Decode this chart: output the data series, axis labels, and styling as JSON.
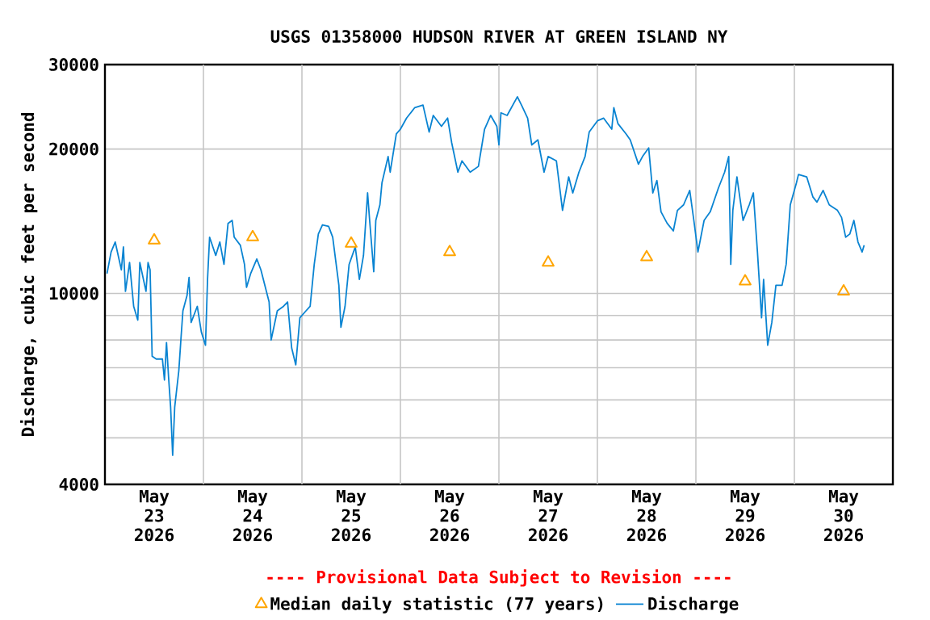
{
  "chart_data": {
    "type": "line",
    "title": "USGS 01358000 HUDSON RIVER AT GREEN ISLAND NY",
    "ylabel": "Discharge, cubic feet per second",
    "annotations": [
      "---- Provisional Data Subject to Revision ----"
    ],
    "log": true,
    "grid": true,
    "legend": "bottom",
    "ylim": [
      4000,
      30000
    ],
    "yticks": [
      4000,
      {
        "value": 5000,
        "label": null
      },
      {
        "value": 6000,
        "label": null
      },
      {
        "value": 7000,
        "label": null
      },
      {
        "value": 8000,
        "label": null
      },
      {
        "value": 9000,
        "label": null
      },
      10000,
      20000,
      30000
    ],
    "xlim": [
      "2026-05-23T00:00",
      "2026-05-31T00:00"
    ],
    "xticks": [
      {
        "value": "2026-05-23T12:00",
        "label": "May 23 2026"
      },
      {
        "value": "2026-05-24T12:00",
        "label": "May 24 2026"
      },
      {
        "value": "2026-05-25T12:00",
        "label": "May 25 2026"
      },
      {
        "value": "2026-05-26T12:00",
        "label": "May 26 2026"
      },
      {
        "value": "2026-05-27T12:00",
        "label": "May 27 2026"
      },
      {
        "value": "2026-05-28T12:00",
        "label": "May 28 2026"
      },
      {
        "value": "2026-05-29T12:00",
        "label": "May 29 2026"
      },
      {
        "value": "2026-05-30T12:00",
        "label": "May 30 2026"
      },
      {
        "value": "2026-05-24T00:00",
        "label": null
      },
      {
        "value": "2026-05-25T00:00",
        "label": null
      },
      {
        "value": "2026-05-26T00:00",
        "label": null
      },
      {
        "value": "2026-05-27T00:00",
        "label": null
      },
      {
        "value": "2026-05-28T00:00",
        "label": null
      },
      {
        "value": "2026-05-29T00:00",
        "label": null
      },
      {
        "value": "2026-05-30T00:00",
        "label": null
      }
    ],
    "series": [
      {
        "name": "Median daily statistic (77 years)",
        "type": "scatter",
        "marker": "triangle",
        "color": "#ffa500",
        "x": [
          "2026-05-23T12:00",
          "2026-05-24T12:00",
          "2026-05-25T12:00",
          "2026-05-26T12:00",
          "2026-05-27T12:00",
          "2026-05-28T12:00",
          "2026-05-29T12:00",
          "2026-05-30T12:00"
        ],
        "values": [
          12900,
          13100,
          12700,
          12200,
          11600,
          11900,
          10600,
          10100
        ]
      },
      {
        "name": "Discharge",
        "line_style": "solid",
        "color": "#0a84d2",
        "x": [
          "2026-05-23T00:30",
          "2026-05-23T01:30",
          "2026-05-23T02:30",
          "2026-05-23T04:00",
          "2026-05-23T04:30",
          "2026-05-23T05:00",
          "2026-05-23T06:00",
          "2026-05-23T07:00",
          "2026-05-23T08:00",
          "2026-05-23T08:30",
          "2026-05-23T10:00",
          "2026-05-23T10:30",
          "2026-05-23T11:00",
          "2026-05-23T11:30",
          "2026-05-23T12:30",
          "2026-05-23T14:00",
          "2026-05-23T14:30",
          "2026-05-23T15:00",
          "2026-05-23T15:30",
          "2026-05-23T16:00",
          "2026-05-23T16:30",
          "2026-05-23T17:00",
          "2026-05-23T18:00",
          "2026-05-23T18:30",
          "2026-05-23T19:00",
          "2026-05-23T20:00",
          "2026-05-23T20:30",
          "2026-05-23T21:00",
          "2026-05-23T22:30",
          "2026-05-23T23:30",
          "2026-05-24T00:30",
          "2026-05-24T01:00",
          "2026-05-24T01:30",
          "2026-05-24T03:00",
          "2026-05-24T04:00",
          "2026-05-24T05:00",
          "2026-05-24T06:00",
          "2026-05-24T07:00",
          "2026-05-24T07:30",
          "2026-05-24T09:00",
          "2026-05-24T10:00",
          "2026-05-24T10:30",
          "2026-05-24T11:30",
          "2026-05-24T13:00",
          "2026-05-24T14:00",
          "2026-05-24T16:00",
          "2026-05-24T16:30",
          "2026-05-24T18:00",
          "2026-05-24T19:30",
          "2026-05-24T20:30",
          "2026-05-24T21:30",
          "2026-05-24T22:30",
          "2026-05-24T23:30",
          "2026-05-25T01:00",
          "2026-05-25T02:00",
          "2026-05-25T03:00",
          "2026-05-25T04:00",
          "2026-05-25T05:00",
          "2026-05-25T06:30",
          "2026-05-25T07:30",
          "2026-05-25T09:00",
          "2026-05-25T09:30",
          "2026-05-25T10:30",
          "2026-05-25T11:30",
          "2026-05-25T13:00",
          "2026-05-25T14:00",
          "2026-05-25T15:00",
          "2026-05-25T16:00",
          "2026-05-25T16:30",
          "2026-05-25T17:30",
          "2026-05-25T18:00",
          "2026-05-25T19:00",
          "2026-05-25T19:30",
          "2026-05-25T21:00",
          "2026-05-25T21:30",
          "2026-05-25T23:00",
          "2026-05-26T00:00",
          "2026-05-26T01:30",
          "2026-05-26T03:30",
          "2026-05-26T05:30",
          "2026-05-26T07:00",
          "2026-05-26T08:00",
          "2026-05-26T10:00",
          "2026-05-26T11:30",
          "2026-05-26T12:30",
          "2026-05-26T14:00",
          "2026-05-26T15:00",
          "2026-05-26T17:00",
          "2026-05-26T19:00",
          "2026-05-26T20:30",
          "2026-05-26T22:00",
          "2026-05-26T23:30",
          "2026-05-27T00:00",
          "2026-05-27T00:30",
          "2026-05-27T02:00",
          "2026-05-27T04:30",
          "2026-05-27T05:30",
          "2026-05-27T07:00",
          "2026-05-27T08:00",
          "2026-05-27T09:30",
          "2026-05-27T11:00",
          "2026-05-27T12:00",
          "2026-05-27T14:00",
          "2026-05-27T15:30",
          "2026-05-27T17:00",
          "2026-05-27T18:00",
          "2026-05-27T19:30",
          "2026-05-27T21:00",
          "2026-05-27T22:00",
          "2026-05-28T00:00",
          "2026-05-28T01:30",
          "2026-05-28T03:30",
          "2026-05-28T04:00",
          "2026-05-28T05:00",
          "2026-05-28T07:00",
          "2026-05-28T08:00",
          "2026-05-28T10:00",
          "2026-05-28T11:00",
          "2026-05-28T12:30",
          "2026-05-28T13:30",
          "2026-05-28T14:30",
          "2026-05-28T15:30",
          "2026-05-28T17:00",
          "2026-05-28T18:30",
          "2026-05-28T19:30",
          "2026-05-28T21:00",
          "2026-05-28T22:30",
          "2026-05-28T23:30",
          "2026-05-29T00:30",
          "2026-05-29T02:00",
          "2026-05-29T03:30",
          "2026-05-29T05:30",
          "2026-05-29T07:00",
          "2026-05-29T08:00",
          "2026-05-29T08:30",
          "2026-05-29T09:00",
          "2026-05-29T10:00",
          "2026-05-29T11:30",
          "2026-05-29T13:00",
          "2026-05-29T14:00",
          "2026-05-29T15:00",
          "2026-05-29T16:00",
          "2026-05-29T16:30",
          "2026-05-29T17:30",
          "2026-05-29T18:30",
          "2026-05-29T19:30",
          "2026-05-29T21:00",
          "2026-05-29T22:00",
          "2026-05-29T23:00",
          "2026-05-30T00:30",
          "2026-05-30T01:00",
          "2026-05-30T03:00",
          "2026-05-30T04:30",
          "2026-05-30T05:30",
          "2026-05-30T07:00",
          "2026-05-30T08:30",
          "2026-05-30T10:30",
          "2026-05-30T11:30",
          "2026-05-30T12:30",
          "2026-05-30T13:30",
          "2026-05-30T14:30",
          "2026-05-30T15:30",
          "2026-05-30T16:30",
          "2026-05-30T17:00"
        ],
        "values": [
          11000,
          12200,
          12800,
          11200,
          12500,
          10100,
          11600,
          9400,
          8800,
          11600,
          10100,
          11600,
          11200,
          7400,
          7300,
          7300,
          6600,
          7900,
          6700,
          5800,
          4600,
          5800,
          6900,
          8000,
          9200,
          9900,
          10800,
          8700,
          9400,
          8300,
          7800,
          10700,
          13100,
          12000,
          12800,
          11500,
          14000,
          14200,
          13100,
          12600,
          11500,
          10300,
          11000,
          11800,
          11200,
          9600,
          8000,
          9200,
          9400,
          9600,
          7700,
          7100,
          8900,
          9200,
          9400,
          11500,
          13300,
          13900,
          13800,
          13100,
          10400,
          8500,
          9400,
          11500,
          12500,
          10700,
          12000,
          16200,
          14200,
          11100,
          14200,
          15300,
          17000,
          19300,
          17900,
          21500,
          22000,
          23200,
          24400,
          24700,
          21700,
          23500,
          22300,
          23200,
          20600,
          17900,
          18900,
          17900,
          18400,
          22000,
          23500,
          22300,
          20400,
          23800,
          23500,
          25700,
          24700,
          23200,
          20400,
          20900,
          17900,
          19300,
          18900,
          14900,
          17500,
          16200,
          17900,
          19300,
          21700,
          22900,
          23200,
          22000,
          24400,
          22600,
          21500,
          20900,
          18600,
          19300,
          20100,
          16200,
          17200,
          14800,
          14000,
          13500,
          14900,
          15300,
          16400,
          14200,
          12200,
          14200,
          14800,
          16600,
          17900,
          19300,
          11500,
          14900,
          17500,
          14200,
          15300,
          16200,
          12200,
          8900,
          10700,
          7800,
          8700,
          10400,
          10400,
          11500,
          15300,
          17000,
          17700,
          17500,
          15900,
          15500,
          16400,
          15300,
          14900,
          14400,
          13100,
          13300,
          14200,
          12800,
          12200,
          12600
        ]
      }
    ]
  }
}
